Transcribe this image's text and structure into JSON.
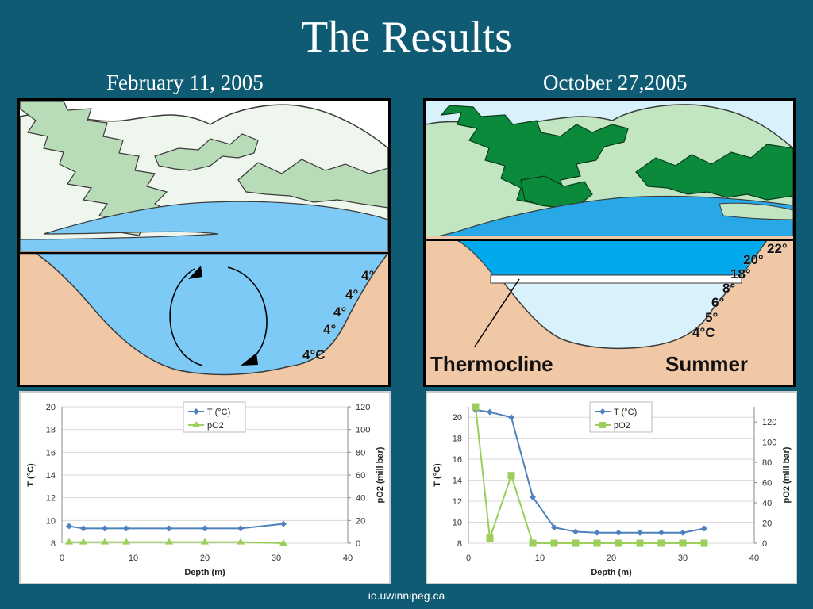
{
  "slide": {
    "title": "The Results",
    "footer": "io.uwinnipeg.ca"
  },
  "left_panel": {
    "date": "February 11, 2005",
    "temperatures": [
      "4°",
      "4°",
      "4°",
      "4°",
      "4°C"
    ]
  },
  "right_panel": {
    "date": "October 27,2005",
    "thermocline_label": "Thermocline",
    "season_label": "Summer",
    "temperatures": [
      "22°",
      "20°",
      "18°",
      "8°",
      "6°",
      "5°",
      "4°C"
    ]
  },
  "colors": {
    "background": "#0f5b73",
    "temperature_series": "#4f81bd",
    "po2_series": "#9bce5b",
    "water_light": "#7ccaf5",
    "water_dark": "#00a9ec",
    "hills": "#c7e9c7",
    "trees_light": "#b8dcb7",
    "trees_dark": "#0b8a3c",
    "ground": "#f1c8a5"
  },
  "chart_data": [
    {
      "type": "line",
      "xlabel": "Depth (m)",
      "ylabel": "T (°C)",
      "y2label": "pO2 (mill bar)",
      "xlim": [
        0,
        40
      ],
      "ylim": [
        8,
        20
      ],
      "y2lim": [
        0,
        120
      ],
      "xticks": [
        0,
        10,
        20,
        30,
        40
      ],
      "yticks": [
        8,
        10,
        12,
        14,
        16,
        18,
        20
      ],
      "y2ticks": [
        0,
        20,
        40,
        60,
        80,
        100,
        120
      ],
      "grid": true,
      "legend_position": "top-center",
      "series": [
        {
          "name": "T (°C)",
          "axis": "left",
          "marker": "diamond",
          "color": "#4f81bd",
          "x": [
            1,
            3,
            6,
            9,
            15,
            20,
            25,
            31
          ],
          "y": [
            9.5,
            9.3,
            9.3,
            9.3,
            9.3,
            9.3,
            9.3,
            9.7
          ]
        },
        {
          "name": "pO2",
          "axis": "right",
          "marker": "triangle",
          "color": "#9bce5b",
          "x": [
            1,
            3,
            6,
            9,
            15,
            20,
            25,
            31
          ],
          "y": [
            1,
            1,
            1,
            1,
            1,
            1,
            1,
            0
          ]
        }
      ]
    },
    {
      "type": "line",
      "xlabel": "Depth (m)",
      "ylabel": "T (°C)",
      "y2label": "pO2 (mill bar)",
      "xlim": [
        0,
        40
      ],
      "ylim": [
        8,
        21
      ],
      "y2lim": [
        0,
        135
      ],
      "xticks": [
        0,
        10,
        20,
        30,
        40
      ],
      "yticks": [
        8,
        10,
        12,
        14,
        16,
        18,
        20
      ],
      "y2ticks": [
        0,
        20,
        40,
        60,
        80,
        100,
        120
      ],
      "grid": true,
      "legend_position": "top-center",
      "series": [
        {
          "name": "T (°C)",
          "axis": "left",
          "marker": "diamond",
          "color": "#4f81bd",
          "x": [
            1,
            3,
            6,
            9,
            12,
            15,
            18,
            21,
            24,
            27,
            30,
            33
          ],
          "y": [
            20.7,
            20.5,
            20.0,
            12.4,
            9.5,
            9.1,
            9.0,
            9.0,
            9.0,
            9.0,
            9.0,
            9.4
          ]
        },
        {
          "name": "pO2",
          "axis": "right",
          "marker": "square",
          "color": "#9bce5b",
          "x": [
            1,
            3,
            6,
            9,
            12,
            15,
            18,
            21,
            24,
            27,
            30,
            33
          ],
          "y": [
            135,
            5,
            67,
            0,
            0,
            0,
            0,
            0,
            0,
            0,
            0,
            0
          ]
        }
      ]
    }
  ]
}
